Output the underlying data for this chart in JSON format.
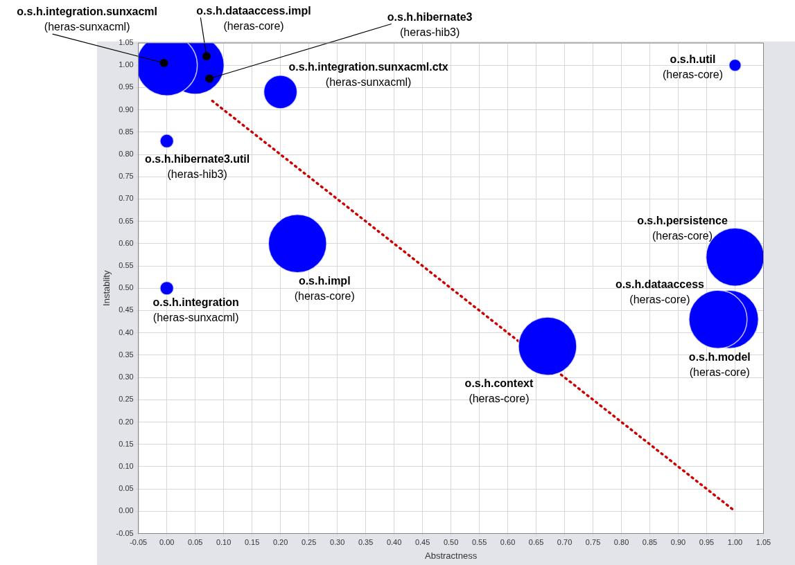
{
  "chart_data": {
    "type": "bubble",
    "xlabel": "Abstractness",
    "ylabel": "Instablity",
    "xlim": [
      -0.05,
      1.05
    ],
    "ylim": [
      -0.05,
      1.05
    ],
    "xticks": [
      {
        "value": -0.05,
        "label": "-0.05"
      },
      {
        "value": 0,
        "label": "0.00"
      },
      {
        "value": 0.05,
        "label": "0.05"
      },
      {
        "value": 0.1,
        "label": "0.10"
      },
      {
        "value": 0.15,
        "label": "0.15"
      },
      {
        "value": 0.2,
        "label": "0.20"
      },
      {
        "value": 0.25,
        "label": "0.25"
      },
      {
        "value": 0.3,
        "label": "0.30"
      },
      {
        "value": 0.35,
        "label": "0.35"
      },
      {
        "value": 0.4,
        "label": "0.40"
      },
      {
        "value": 0.45,
        "label": "0.45"
      },
      {
        "value": 0.5,
        "label": "0.50"
      },
      {
        "value": 0.55,
        "label": "0.55"
      },
      {
        "value": 0.6,
        "label": "0.60"
      },
      {
        "value": 0.65,
        "label": "0.65"
      },
      {
        "value": 0.7,
        "label": "0.70"
      },
      {
        "value": 0.75,
        "label": "0.75"
      },
      {
        "value": 0.8,
        "label": "0.80"
      },
      {
        "value": 0.85,
        "label": "0.85"
      },
      {
        "value": 0.9,
        "label": "0.90"
      },
      {
        "value": 0.95,
        "label": "0.95"
      },
      {
        "value": 1,
        "label": "1.00"
      },
      {
        "value": 1.05,
        "label": "1.05"
      }
    ],
    "yticks": [
      {
        "value": -0.05,
        "label": "-0.05"
      },
      {
        "value": 0,
        "label": "0.00"
      },
      {
        "value": 0.05,
        "label": "0.05"
      },
      {
        "value": 0.1,
        "label": "0.10"
      },
      {
        "value": 0.15,
        "label": "0.15"
      },
      {
        "value": 0.2,
        "label": "0.20"
      },
      {
        "value": 0.25,
        "label": "0.25"
      },
      {
        "value": 0.3,
        "label": "0.30"
      },
      {
        "value": 0.35,
        "label": "0.35"
      },
      {
        "value": 0.4,
        "label": "0.40"
      },
      {
        "value": 0.45,
        "label": "0.45"
      },
      {
        "value": 0.5,
        "label": "0.50"
      },
      {
        "value": 0.55,
        "label": "0.55"
      },
      {
        "value": 0.6,
        "label": "0.60"
      },
      {
        "value": 0.65,
        "label": "0.65"
      },
      {
        "value": 0.7,
        "label": "0.70"
      },
      {
        "value": 0.75,
        "label": "0.75"
      },
      {
        "value": 0.8,
        "label": "0.80"
      },
      {
        "value": 0.85,
        "label": "0.85"
      },
      {
        "value": 0.9,
        "label": "0.90"
      },
      {
        "value": 0.95,
        "label": "0.95"
      },
      {
        "value": 1,
        "label": "1.00"
      },
      {
        "value": 1.05,
        "label": "1.05"
      }
    ],
    "grid": true,
    "legend": false,
    "marker": "circle",
    "series": [
      {
        "type": "line",
        "color": "#cc0000",
        "line_style": "dotted",
        "marker": "none",
        "x": [
          0.08,
          1
        ],
        "values": [
          0.92,
          0
        ]
      },
      {
        "name": "o.s.h.integration.sunxacml",
        "color": "#0000ff",
        "x": [
          0
        ],
        "values": [
          1
        ],
        "sizes": [
          1
        ]
      },
      {
        "color": "#0000ff",
        "x": [
          0.05
        ],
        "values": [
          1
        ],
        "sizes": [
          0.9
        ]
      },
      {
        "name": "o.s.h.integration.sunxacml.ctx",
        "color": "#0000ff",
        "x": [
          0.2
        ],
        "values": [
          0.94
        ],
        "sizes": [
          0.3
        ]
      },
      {
        "name": "o.s.h.hibernate3.util",
        "color": "#0000ff",
        "x": [
          0
        ],
        "values": [
          0.83
        ],
        "sizes": [
          0.05
        ]
      },
      {
        "name": "o.s.h.impl",
        "color": "#0000ff",
        "x": [
          0.23
        ],
        "values": [
          0.6
        ],
        "sizes": [
          0.91
        ]
      },
      {
        "name": "o.s.h.integration",
        "color": "#0000ff",
        "x": [
          0
        ],
        "values": [
          0.5
        ],
        "sizes": [
          0.05
        ]
      },
      {
        "name": "o.s.h.context",
        "color": "#0000ff",
        "x": [
          0.67
        ],
        "values": [
          0.37
        ],
        "sizes": [
          0.91
        ]
      },
      {
        "name": "o.s.h.persistence",
        "color": "#0000ff",
        "x": [
          1
        ],
        "values": [
          0.57
        ],
        "sizes": [
          0.91
        ]
      },
      {
        "name": "o.s.h.dataaccess",
        "color": "#0000ff",
        "x": [
          0.97
        ],
        "values": [
          0.43
        ],
        "sizes": [
          0.91
        ]
      },
      {
        "name": "o.s.h.model",
        "color": "#0000ff",
        "x": [
          0.99
        ],
        "values": [
          0.43
        ],
        "sizes": [
          0.91
        ]
      },
      {
        "name": "o.s.h.util",
        "color": "#0000ff",
        "x": [
          1
        ],
        "values": [
          1
        ],
        "sizes": [
          0.04
        ]
      }
    ],
    "annotations": [
      {
        "text": "(heras-sunxacml)",
        "x": -0.005,
        "y": 1.005
      },
      "(heras-sunxacml)",
      "(heras-hib3)",
      "(heras-core)",
      "(heras-sunxacml)",
      "(heras-core)",
      "(heras-core)",
      "(heras-core)",
      "(heras-core)",
      "(heras-core)",
      {
        "text": "o.s.h.dataaccess.impl",
        "x": 0.07,
        "y": 1.02
      },
      "(heras-core)",
      {
        "text": "o.s.h.hibernate3",
        "x": 0.075,
        "y": 0.97
      },
      "(heras-hib3)"
    ]
  }
}
